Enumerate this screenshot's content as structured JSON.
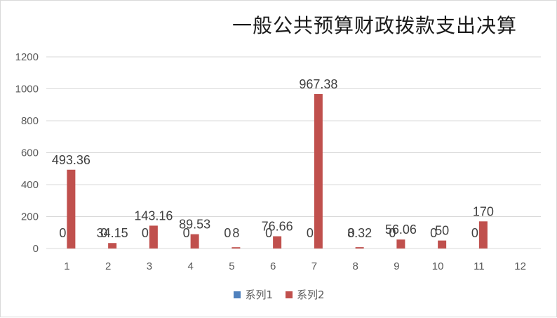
{
  "chart_data": {
    "type": "bar",
    "title": "一般公共预算财政拨款支出决算",
    "categories": [
      "1",
      "2",
      "3",
      "4",
      "5",
      "6",
      "7",
      "8",
      "9",
      "10",
      "11",
      "12"
    ],
    "ylim": [
      0,
      1200
    ],
    "yticks": [
      0,
      200,
      400,
      600,
      800,
      1000,
      1200
    ],
    "grid": true,
    "legend_position": "bottom",
    "series": [
      {
        "name": "系列1",
        "color": "#4f81bd",
        "values": [
          0,
          0,
          0,
          0,
          0,
          0,
          0,
          0,
          0,
          0,
          0,
          null
        ],
        "labels": [
          "0",
          "0",
          "0",
          "0",
          "0",
          "0",
          "0",
          "0",
          "0",
          "0",
          "0",
          ""
        ]
      },
      {
        "name": "系列2",
        "color": "#c0504d",
        "values": [
          493.36,
          34.15,
          143.16,
          89.53,
          8,
          76.66,
          967.38,
          8.32,
          56.06,
          50,
          170,
          null
        ],
        "labels": [
          "493.36",
          "34.15",
          "143.16",
          "89.53",
          "8",
          "76.66",
          "967.38",
          "8.32",
          "56.06",
          "50",
          "170",
          ""
        ]
      }
    ]
  }
}
